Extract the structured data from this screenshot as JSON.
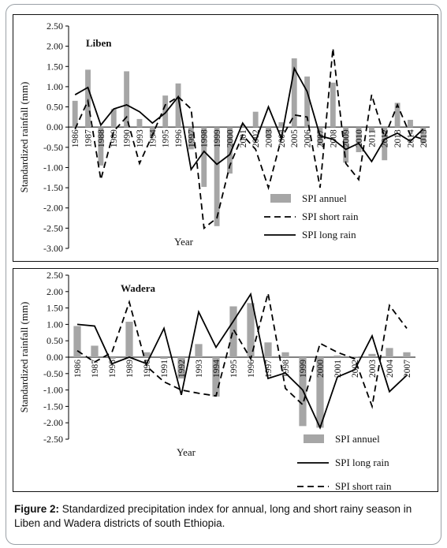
{
  "caption": {
    "label": "Figure 2:",
    "text": "Standardized precipitation index for annual, long and short rainy season in Liben and Wadera districts of south Ethiopia."
  },
  "colors": {
    "bars": "#a6a6a6",
    "lines": "#000000"
  },
  "chart_data": [
    {
      "type": "bar",
      "title": "Liben",
      "xlabel": "Year",
      "ylabel": "Standardized rainfall (mm)",
      "ylim": [
        -3.0,
        2.5
      ],
      "yticks": [
        "2.50",
        "2.00",
        "1.50",
        "1.00",
        "0.50",
        "0.00",
        "-0.50",
        "-1.00",
        "-1.50",
        "-2.00",
        "-2.50",
        "-3.00"
      ],
      "grid": false,
      "legend_position": "bottom-right",
      "categories": [
        "1986",
        "1987",
        "1988",
        "1989",
        "1990",
        "1993",
        "1994",
        "1995",
        "1996",
        "1997",
        "1998",
        "1999",
        "2000",
        "2001",
        "2002",
        "2003",
        "2004",
        "2005",
        "2006",
        "2007",
        "2008",
        "2009",
        "2010",
        "2011",
        "2012",
        "2013",
        "2014",
        "2015"
      ],
      "series": [
        {
          "name": "SPI annuel",
          "style": "bar",
          "values": [
            0.65,
            1.42,
            -0.95,
            0.45,
            1.38,
            0.2,
            -0.2,
            0.78,
            1.08,
            -0.55,
            -1.48,
            -2.45,
            -1.15,
            0.05,
            0.38,
            -0.25,
            0.12,
            1.7,
            1.25,
            -0.45,
            1.1,
            -0.88,
            -0.62,
            -0.1,
            -0.82,
            0.6,
            0.18,
            -0.4
          ]
        },
        {
          "name": "SPI short rain",
          "style": "dashed",
          "values": [
            -0.05,
            0.65,
            -1.3,
            -0.1,
            0.25,
            -0.9,
            -0.2,
            0.55,
            0.75,
            0.45,
            -2.5,
            -2.25,
            -0.95,
            -0.2,
            -0.55,
            -1.5,
            -0.28,
            0.3,
            0.25,
            -1.5,
            1.95,
            -0.9,
            -1.3,
            0.8,
            -0.25,
            0.55,
            -0.2,
            -0.3
          ]
        },
        {
          "name": "SPI long rain",
          "style": "solid",
          "values": [
            0.8,
            0.98,
            0.05,
            0.45,
            0.55,
            0.38,
            0.1,
            0.35,
            0.75,
            -1.05,
            -0.6,
            -0.92,
            -0.68,
            0.1,
            -0.35,
            0.5,
            -0.28,
            1.45,
            0.88,
            -0.22,
            -0.3,
            -0.55,
            -0.4,
            -0.85,
            -0.3,
            -0.15,
            -0.35,
            -0.05
          ]
        }
      ]
    },
    {
      "type": "bar",
      "title": "Wadera",
      "xlabel": "Year",
      "ylabel": "Standardized rainfall (mm)",
      "ylim": [
        -2.5,
        2.5
      ],
      "yticks": [
        "2.50",
        "2.00",
        "1.50",
        "1.00",
        "0.50",
        "0.00",
        "-0.50",
        "-1.00",
        "-1.50",
        "-2.00",
        "-2.50"
      ],
      "grid": false,
      "legend_position": "bottom-right",
      "categories": [
        "1986",
        "1987",
        "1998",
        "1989",
        "1990",
        "1991",
        "1992",
        "1993",
        "1994",
        "1995",
        "1996",
        "1997",
        "1998",
        "1999",
        "2000",
        "2001",
        "2002",
        "2003",
        "2004",
        "2007"
      ],
      "series": [
        {
          "name": "SPI annuel",
          "style": "bar",
          "values": [
            0.95,
            0.35,
            -0.05,
            1.08,
            0.15,
            -0.05,
            -0.65,
            0.4,
            -1.2,
            1.55,
            1.65,
            0.45,
            0.15,
            -2.1,
            -2.15,
            0.05,
            0.02,
            0.1,
            0.28,
            0.15
          ]
        },
        {
          "name": "SPI long rain",
          "style": "solid",
          "values": [
            1.0,
            0.95,
            -0.2,
            0.0,
            -0.2,
            0.88,
            -1.15,
            1.38,
            0.3,
            1.1,
            1.92,
            -0.65,
            -0.48,
            -1.0,
            -2.15,
            -0.6,
            -0.38,
            0.65,
            -1.05,
            -0.55
          ]
        },
        {
          "name": "SPI short rain",
          "style": "dashed",
          "values": [
            0.2,
            -0.15,
            0.15,
            1.68,
            -0.28,
            -0.75,
            -1.0,
            -1.1,
            -1.18,
            0.85,
            -0.05,
            1.95,
            -0.95,
            -1.45,
            0.42,
            0.15,
            -0.05,
            -1.5,
            1.58,
            0.88
          ]
        }
      ]
    }
  ]
}
